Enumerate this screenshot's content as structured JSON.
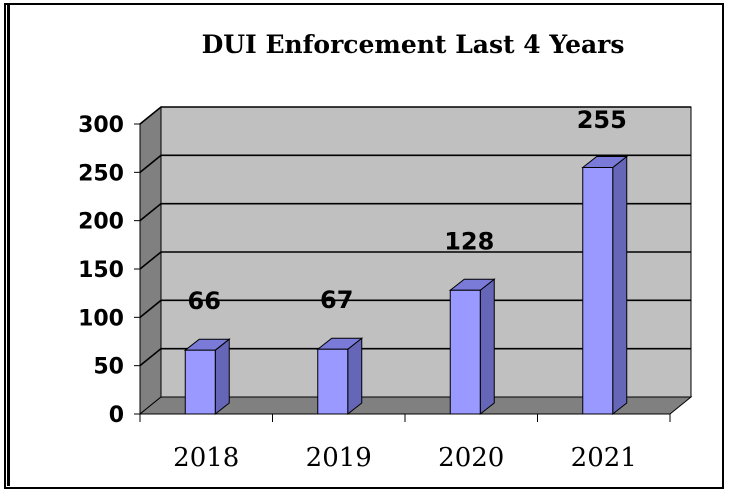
{
  "chart_data": {
    "type": "bar",
    "title": "DUI Enforcement Last 4 Years",
    "categories": [
      "2018",
      "2019",
      "2020",
      "2021"
    ],
    "values": [
      66,
      67,
      128,
      255
    ],
    "data_labels": [
      "66",
      "67",
      "128",
      "255"
    ],
    "yticks": [
      "0",
      "50",
      "100",
      "150",
      "200",
      "250",
      "300"
    ],
    "ylim": [
      0,
      300
    ],
    "xlabel": "",
    "ylabel": "",
    "grid": true,
    "legend": "none",
    "colors": {
      "bar_front": "#9999ff",
      "bar_side": "#6666b8",
      "bar_top": "#7a7ad8",
      "wall": "#c0c0c0",
      "wall_side": "#808080",
      "floor": "#808080"
    }
  }
}
